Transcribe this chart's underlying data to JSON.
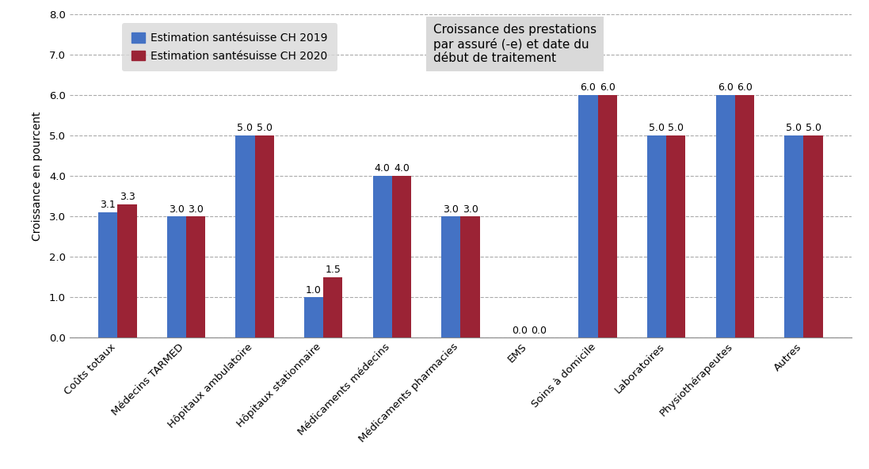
{
  "categories": [
    "Coûts totaux",
    "Médecins TARMED",
    "Hôpitaux ambulatoire",
    "Hôpitaux stationnaire",
    "Médicaments médecins",
    "Médicaments pharmacies",
    "EMS",
    "Soins à domicile",
    "Laboratoires",
    "Physiothérapeutes",
    "Autres"
  ],
  "values_2019": [
    3.1,
    3.0,
    5.0,
    1.0,
    4.0,
    3.0,
    0.0,
    6.0,
    5.0,
    6.0,
    5.0
  ],
  "values_2020": [
    3.3,
    3.0,
    5.0,
    1.5,
    4.0,
    3.0,
    0.0,
    6.0,
    5.0,
    6.0,
    5.0
  ],
  "color_2019": "#4472C4",
  "color_2020": "#9B2335",
  "legend_2019": "Estimation santésuisse CH 2019",
  "legend_2020": "Estimation santésuisse CH 2020",
  "ylabel": "Croissance en pourcent",
  "ylim": [
    0.0,
    8.0
  ],
  "yticks": [
    0.0,
    1.0,
    2.0,
    3.0,
    4.0,
    5.0,
    6.0,
    7.0,
    8.0
  ],
  "annotation_text": "Croissance des prestations\npar assuré (-e) et date du\ndébut de traitement",
  "background_color": "#FFFFFF",
  "legend_bg_color": "#D9D9D9",
  "annotation_bg_color": "#D9D9D9",
  "bar_width": 0.28,
  "label_fontsize": 10,
  "tick_fontsize": 9.5,
  "bar_label_fontsize": 9,
  "annotation_fontsize": 11
}
